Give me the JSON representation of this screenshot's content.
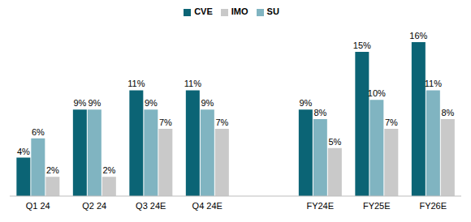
{
  "chart_data": {
    "type": "bar",
    "categories": [
      "Q1 24",
      "Q2 24",
      "Q3 24E",
      "Q4 24E",
      null,
      "FY24E",
      "FY25E",
      "FY26E"
    ],
    "series": [
      {
        "name": "CVE",
        "color": "#0b6475",
        "values": [
          4,
          9,
          11,
          11,
          null,
          9,
          15,
          16
        ],
        "value_labels": [
          "4%",
          "9%",
          "11%",
          "11%",
          null,
          "9%",
          "15%",
          "16%"
        ]
      },
      {
        "name": "SU",
        "color": "#80b4c1",
        "values": [
          6,
          9,
          9,
          9,
          null,
          8,
          10,
          11
        ],
        "value_labels": [
          "6%",
          "9%",
          "9%",
          "9%",
          null,
          "8%",
          "10%",
          "11%"
        ]
      },
      {
        "name": "IMO",
        "color": "#c9c9c9",
        "values": [
          2,
          2,
          7,
          7,
          null,
          5,
          7,
          8
        ],
        "value_labels": [
          "2%",
          "2%",
          "7%",
          "7%",
          null,
          "5%",
          "7%",
          "8%"
        ]
      }
    ],
    "ylim": [
      0,
      16
    ],
    "legend": "top",
    "data_labels": true,
    "grid": false,
    "tick_labels": "x"
  }
}
